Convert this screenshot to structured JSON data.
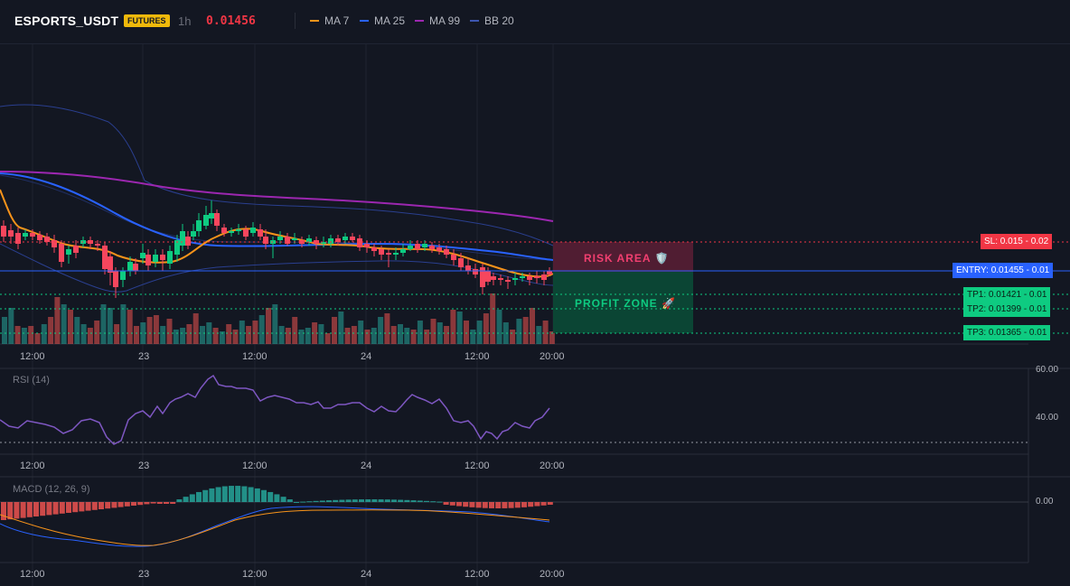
{
  "header": {
    "symbol": "ESPORTS_USDT",
    "badge": "FUTURES",
    "interval": "1h",
    "price": "0.01456",
    "legend": [
      {
        "label": "MA 7",
        "color": "#f7931a"
      },
      {
        "label": "MA 25",
        "color": "#2962ff"
      },
      {
        "label": "MA 99",
        "color": "#9c27b0"
      },
      {
        "label": "BB 20",
        "color": "#2a3f8f"
      }
    ]
  },
  "zones": {
    "risk_label": "RISK AREA 🛡️",
    "profit_label": "PROFIT ZONE 🚀"
  },
  "levels": {
    "sl": "SL: 0.015 - 0.02",
    "entry": "ENTRY: 0.01455 - 0.01",
    "tp1": "TP1: 0.01421 - 0.01",
    "tp2": "TP2: 0.01399 - 0.01",
    "tp3": "TP3: 0.01365 - 0.01"
  },
  "time_axis": [
    "12:00",
    "23",
    "12:00",
    "24",
    "12:00",
    "20:00"
  ],
  "rsi": {
    "label": "RSI (14)",
    "axis": [
      "60.00",
      "40.00"
    ]
  },
  "macd": {
    "label": "MACD (12, 26, 9)",
    "axis": [
      "0.00"
    ]
  },
  "colors": {
    "up": "#26a69a",
    "down": "#ef5350",
    "bull_candle": "#0ecb81",
    "bear_candle": "#f6465d",
    "sl": "#f23645",
    "entry": "#2962ff",
    "tp": "#0ecb81"
  }
}
